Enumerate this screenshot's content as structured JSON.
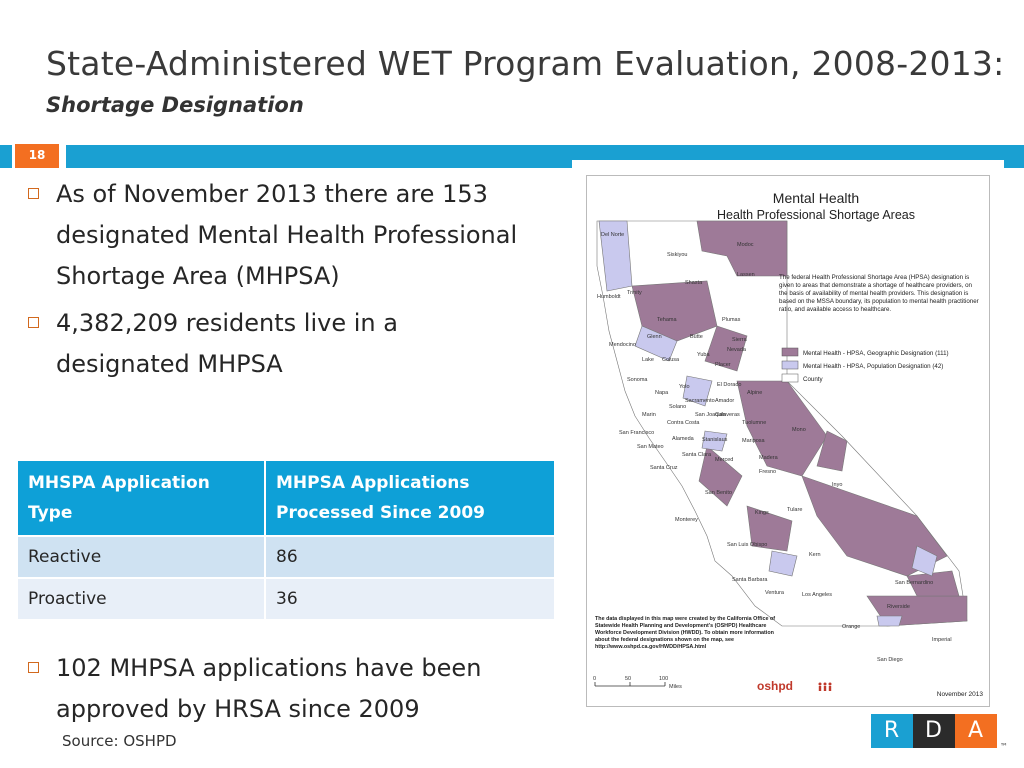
{
  "slide": {
    "title": "State-Administered WET Program Evaluation, 2008-2013:",
    "subtitle": "Shortage Designation",
    "number": "18"
  },
  "bullets_top": [
    "As of November 2013 there are 153 designated Mental Health Professional Shortage Area (MHPSA)",
    "4,382,209 residents live in a designated MHPSA"
  ],
  "table": {
    "headers": [
      "MHSPA Application Type",
      "MHPSA Applications Processed Since 2009"
    ],
    "rows": [
      [
        "Reactive",
        "86"
      ],
      [
        "Proactive",
        "36"
      ]
    ]
  },
  "bullets_bottom": [
    "102 MHPSA applications have been approved by HRSA since 2009"
  ],
  "source": "Source: OSHPD",
  "map": {
    "title_line1": "Mental Health",
    "title_line2": "Health Professional Shortage Areas",
    "description": "The federal Health Professional Shortage Area (HPSA) designation is given to areas that demonstrate a shortage of healthcare providers, on the basis of availability of mental health providers. This designation is based on the MSSA boundary, its population to mental health practitioner ratio, and available access to healthcare.",
    "legend": [
      {
        "label": "Mental Health - HPSA, Geographic Designation (111)",
        "color": "#9e7a98"
      },
      {
        "label": "Mental Health - HPSA, Population Designation (42)",
        "color": "#c9c9ee"
      },
      {
        "label": "County",
        "color": "#ffffff"
      }
    ],
    "note": "The data displayed in this map were created by the California Office of Statewide Health Planning and Development's (OSHPD) Healthcare Workforce Development Division (HWDD). To obtain more information about the federal designations shown on the map, see http://www.oshpd.ca.gov/HWDD/HPSA.html",
    "scale_labels": [
      "0",
      "50",
      "100"
    ],
    "scale_unit": "Miles",
    "date": "November 2013",
    "brand": "oshpd",
    "counties": [
      "Del Norte",
      "Siskiyou",
      "Modoc",
      "Humboldt",
      "Trinity",
      "Shasta",
      "Lassen",
      "Tehama",
      "Plumas",
      "Mendocino",
      "Glenn",
      "Butte",
      "Sierra",
      "Nevada",
      "Lake",
      "Colusa",
      "Yuba",
      "Placer",
      "Sonoma",
      "Napa",
      "Yolo",
      "El Dorado",
      "Alpine",
      "Amador",
      "Solano",
      "Sacramento",
      "Marin",
      "San Joaquin",
      "Calaveras",
      "Contra Costa",
      "Tuolumne",
      "Mono",
      "San Francisco",
      "Alameda",
      "Stanislaus",
      "San Mateo",
      "Mariposa",
      "Santa Clara",
      "Merced",
      "Madera",
      "Santa Cruz",
      "Fresno",
      "Inyo",
      "San Benito",
      "Monterey",
      "Tulare",
      "Kings",
      "San Luis Obispo",
      "Kern",
      "Santa Barbara",
      "Ventura",
      "Los Angeles",
      "San Bernardino",
      "Orange",
      "Riverside",
      "San Diego",
      "Imperial",
      "Sutter"
    ]
  },
  "logo": {
    "letters": [
      "R",
      "D",
      "A"
    ],
    "mark": "™"
  },
  "colors": {
    "accent_blue": "#1aa0d2",
    "accent_orange": "#f36f21",
    "hpsa_geo": "#9e7a98",
    "hpsa_pop": "#c9c9ee"
  }
}
